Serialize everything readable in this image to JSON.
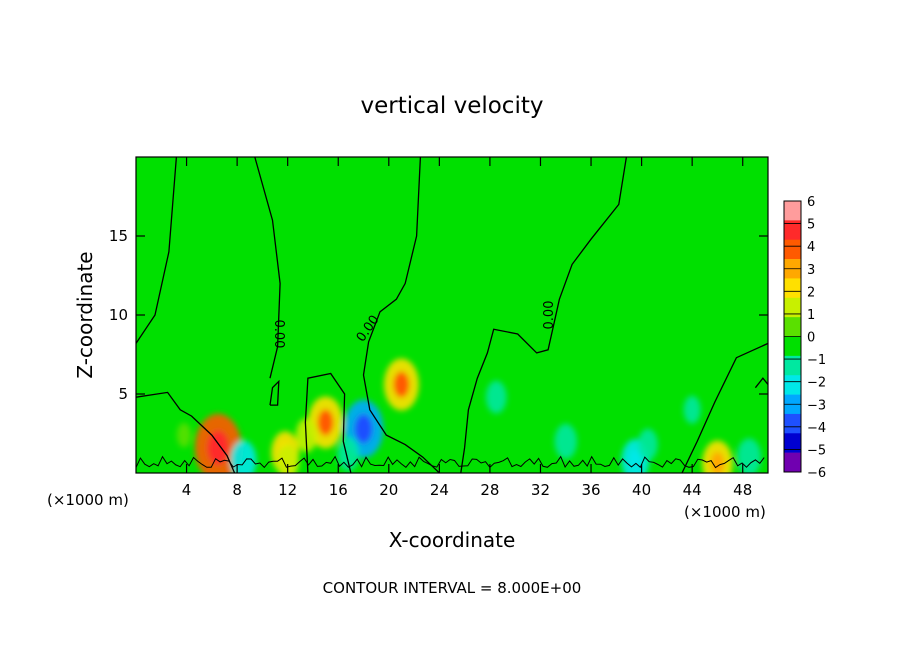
{
  "chart_data": {
    "type": "heatmap",
    "title": "vertical velocity",
    "xlabel": "X-coordinate",
    "ylabel": "Z-coordinate",
    "x_unit_left": "(×1000 m)",
    "x_unit_right": "(×1000 m)",
    "footer": "CONTOUR INTERVAL = 8.000E+00",
    "xlim": [
      0,
      50
    ],
    "ylim": [
      0,
      20
    ],
    "x_ticks": [
      4,
      8,
      12,
      16,
      20,
      24,
      28,
      32,
      36,
      40,
      44,
      48
    ],
    "y_ticks": [
      5,
      10,
      15
    ],
    "colorbar": {
      "levels": [
        6,
        5,
        4,
        3,
        2,
        1,
        0,
        -1,
        -2,
        -3,
        -4,
        -5,
        -6
      ],
      "colors": [
        "#ff9c9c",
        "#ff2a2a",
        "#ff5a00",
        "#ffa800",
        "#ffe000",
        "#c8f000",
        "#5ae000",
        "#00e000",
        "#00e8a0",
        "#00e8e8",
        "#00a8ff",
        "#1e50ff",
        "#0000d0",
        "#7000b0"
      ]
    },
    "background_value": 0,
    "contour_labels": [
      {
        "text": "0.00",
        "x": 11.0,
        "z": 8.8,
        "rotate": 90
      },
      {
        "text": "0.00",
        "x": 18.6,
        "z": 9.0,
        "rotate": -55
      },
      {
        "text": "0.00",
        "x": 33.0,
        "z": 10.0,
        "rotate": -90
      }
    ],
    "features": [
      {
        "x": 6.5,
        "z": 1.6,
        "value": 4.3
      },
      {
        "x": 21.0,
        "z": 5.6,
        "value": 3.0
      },
      {
        "x": 15.0,
        "z": 3.2,
        "value": 3.0
      },
      {
        "x": 11.8,
        "z": 1.3,
        "value": 2.2
      },
      {
        "x": 13.5,
        "z": 2.4,
        "value": 1.5
      },
      {
        "x": 18.0,
        "z": 2.8,
        "value": -3.5
      },
      {
        "x": 16.8,
        "z": 1.2,
        "value": -1.5
      },
      {
        "x": 8.5,
        "z": 0.8,
        "value": -2.0
      },
      {
        "x": 28.5,
        "z": 4.8,
        "value": -1.4
      },
      {
        "x": 34.0,
        "z": 2.0,
        "value": -1.6
      },
      {
        "x": 39.5,
        "z": 0.8,
        "value": -2.2
      },
      {
        "x": 40.5,
        "z": 1.8,
        "value": -1.3
      },
      {
        "x": 46.0,
        "z": 0.6,
        "value": 2.5
      },
      {
        "x": 48.5,
        "z": 1.0,
        "value": -1.8
      },
      {
        "x": 3.8,
        "z": 2.4,
        "value": 0.7
      },
      {
        "x": 24.0,
        "z": 11.0,
        "value": -0.6
      },
      {
        "x": 29.0,
        "z": 12.0,
        "value": -0.7
      },
      {
        "x": 39.0,
        "z": 9.0,
        "value": -0.6
      },
      {
        "x": 20.0,
        "z": 14.0,
        "value": -0.3
      },
      {
        "x": 44.0,
        "z": 4.0,
        "value": -1.0
      },
      {
        "x": 12.0,
        "z": 0.7,
        "value": 1.6
      }
    ],
    "contour_lines": [
      [
        [
          3.2,
          20
        ],
        [
          2.6,
          14
        ],
        [
          1.5,
          10
        ],
        [
          0,
          8.2
        ]
      ],
      [
        [
          9.4,
          20
        ],
        [
          10.8,
          16
        ],
        [
          11.4,
          12
        ],
        [
          11.2,
          8
        ],
        [
          10.6,
          6
        ]
      ],
      [
        [
          22.5,
          20
        ],
        [
          22.2,
          15
        ],
        [
          21.3,
          12
        ],
        [
          20.6,
          11
        ],
        [
          19.3,
          10.2
        ],
        [
          18.4,
          8.3
        ],
        [
          18.0,
          6.2
        ],
        [
          18.5,
          4.0
        ],
        [
          19.8,
          2.4
        ],
        [
          21.3,
          1.8
        ],
        [
          22.7,
          1.0
        ],
        [
          24.0,
          0
        ]
      ],
      [
        [
          38.8,
          20
        ],
        [
          38.2,
          17
        ],
        [
          36.0,
          14.8
        ],
        [
          34.5,
          13.2
        ],
        [
          33.5,
          11.0
        ],
        [
          32.6,
          7.8
        ],
        [
          31.7,
          7.6
        ],
        [
          30.2,
          8.8
        ],
        [
          28.3,
          9.1
        ],
        [
          27.8,
          7.6
        ],
        [
          27.0,
          6.0
        ],
        [
          26.3,
          4.0
        ],
        [
          26.0,
          1.6
        ],
        [
          25.7,
          0
        ]
      ],
      [
        [
          50,
          8.2
        ],
        [
          47.5,
          7.3
        ],
        [
          45.8,
          4.5
        ],
        [
          44.4,
          2.0
        ],
        [
          43.2,
          0
        ]
      ],
      [
        [
          0,
          4.8
        ],
        [
          2.5,
          5.1
        ],
        [
          3.5,
          4.0
        ],
        [
          4.4,
          3.6
        ],
        [
          6.0,
          2.4
        ],
        [
          7.2,
          1.1
        ],
        [
          7.8,
          0
        ]
      ],
      [
        [
          13.6,
          0
        ],
        [
          13.4,
          3.2
        ],
        [
          13.6,
          6.0
        ],
        [
          15.4,
          6.3
        ],
        [
          16.5,
          5.0
        ],
        [
          16.4,
          2.0
        ],
        [
          17.0,
          0
        ]
      ],
      [
        [
          10.6,
          4.3
        ],
        [
          10.8,
          5.4
        ],
        [
          11.3,
          5.8
        ],
        [
          11.2,
          4.3
        ],
        [
          10.6,
          4.3
        ]
      ],
      [
        [
          49.0,
          5.4
        ],
        [
          49.6,
          6.0
        ],
        [
          50,
          5.6
        ]
      ]
    ]
  }
}
